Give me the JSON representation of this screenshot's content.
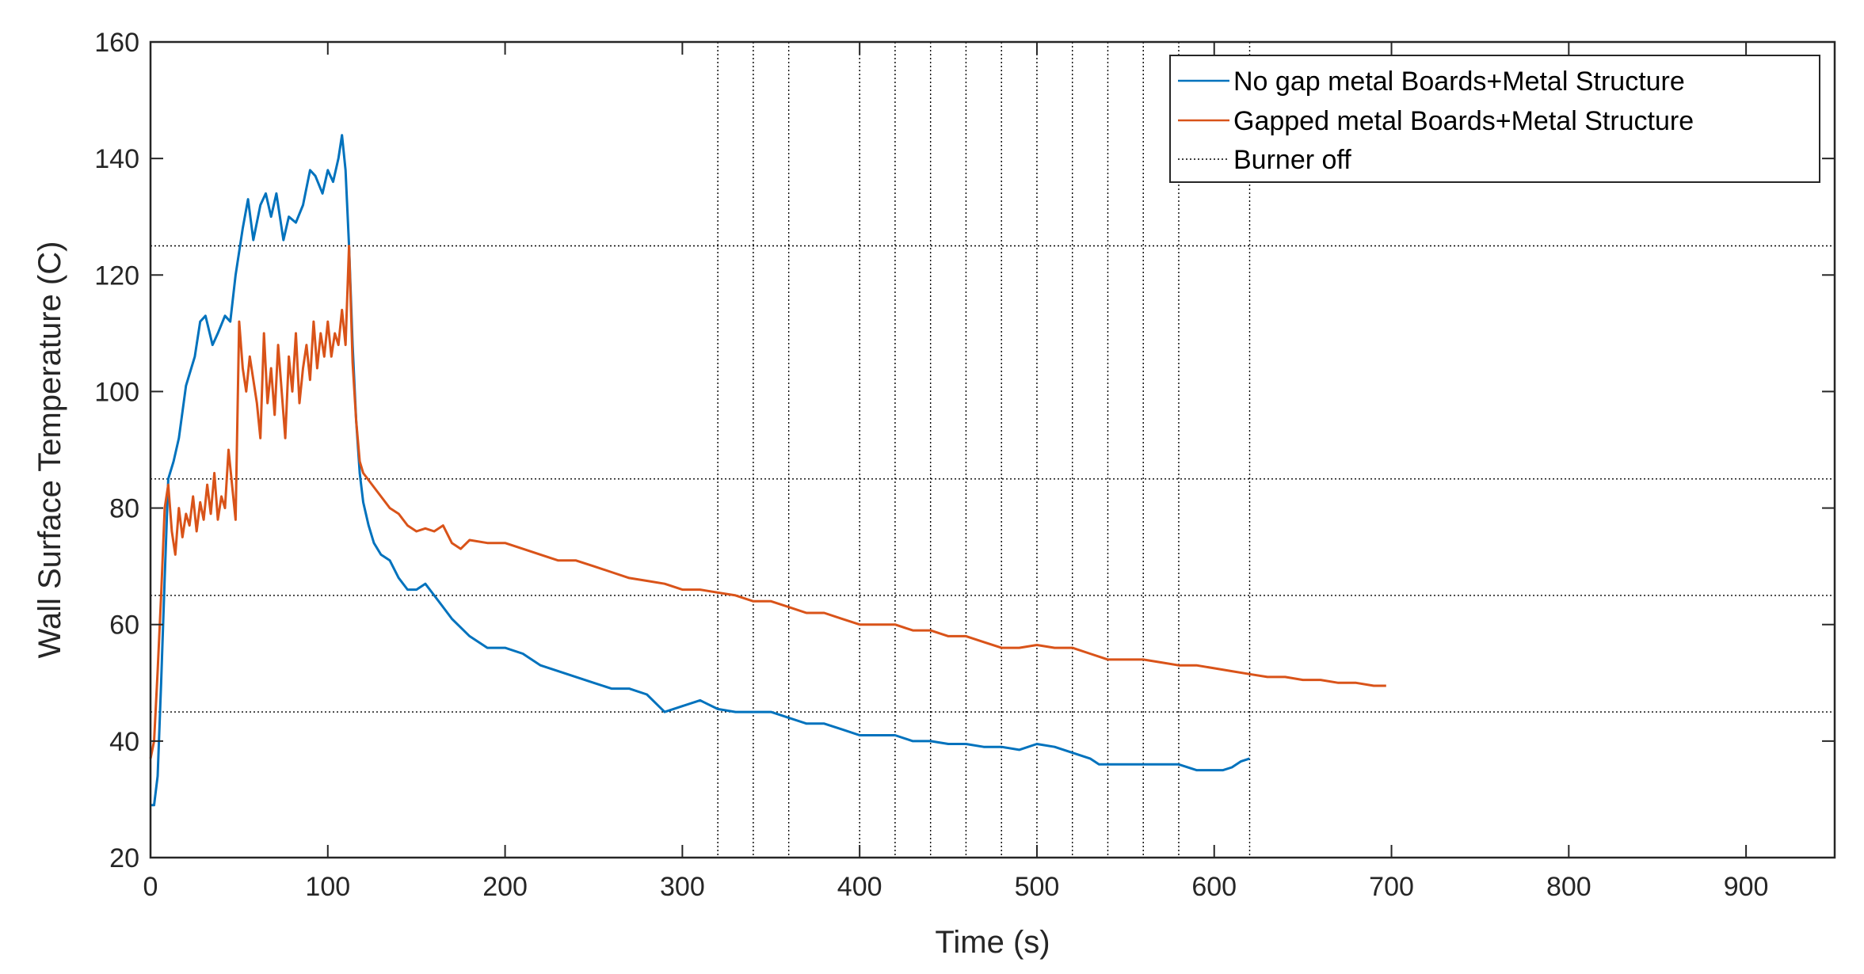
{
  "chart_data": {
    "type": "line",
    "xlabel": "Time (s)",
    "ylabel": "Wall Surface Temperature (C)",
    "xlim": [
      0,
      950
    ],
    "ylim": [
      20,
      160
    ],
    "xticks": [
      0,
      100,
      200,
      300,
      400,
      500,
      600,
      700,
      800,
      900
    ],
    "yticks": [
      20,
      40,
      60,
      80,
      100,
      120,
      140,
      160
    ],
    "grid": false,
    "legend_position": "top-right",
    "series": [
      {
        "name": "No gap metal Boards+Metal Structure",
        "color": "#0072BD",
        "style": "solid",
        "x": [
          0,
          2,
          4,
          6,
          8,
          10,
          13,
          16,
          20,
          25,
          28,
          31,
          35,
          38,
          42,
          45,
          48,
          52,
          55,
          58,
          62,
          65,
          68,
          71,
          75,
          78,
          82,
          86,
          90,
          93,
          97,
          100,
          103,
          106,
          108,
          110,
          112,
          114,
          116,
          118,
          120,
          123,
          126,
          130,
          135,
          140,
          145,
          150,
          155,
          160,
          165,
          170,
          180,
          190,
          200,
          210,
          220,
          230,
          240,
          250,
          260,
          270,
          280,
          290,
          300,
          310,
          320,
          330,
          340,
          350,
          360,
          370,
          380,
          390,
          400,
          410,
          420,
          430,
          440,
          450,
          460,
          470,
          480,
          490,
          500,
          510,
          520,
          530,
          535,
          540,
          550,
          560,
          570,
          580,
          590,
          600,
          605,
          610,
          615,
          620
        ],
        "y": [
          29,
          29,
          34,
          50,
          68,
          85,
          88,
          92,
          101,
          106,
          112,
          113,
          108,
          110,
          113,
          112,
          120,
          128,
          133,
          126,
          132,
          134,
          130,
          134,
          126,
          130,
          129,
          132,
          138,
          137,
          134,
          138,
          136,
          140,
          144,
          138,
          125,
          108,
          95,
          86,
          81,
          77,
          74,
          72,
          71,
          68,
          66,
          66,
          67,
          65,
          63,
          61,
          58,
          56,
          56,
          55,
          53,
          52,
          51,
          50,
          49,
          49,
          48,
          45,
          46,
          47,
          45.5,
          45,
          45,
          45,
          44,
          43,
          43,
          42,
          41,
          41,
          41,
          40,
          40,
          39.5,
          39.5,
          39,
          39,
          38.5,
          39.5,
          39,
          38,
          37,
          36,
          36,
          36,
          36,
          36,
          36,
          35,
          35,
          35,
          35.5,
          36.5,
          37
        ]
      },
      {
        "name": "Gapped metal Boards+Metal Structure",
        "color": "#D95319",
        "style": "solid",
        "x": [
          0,
          2,
          4,
          6,
          8,
          10,
          12,
          14,
          16,
          18,
          20,
          22,
          24,
          26,
          28,
          30,
          32,
          34,
          36,
          38,
          40,
          42,
          44,
          46,
          48,
          50,
          52,
          54,
          56,
          58,
          60,
          62,
          64,
          66,
          68,
          70,
          72,
          74,
          76,
          78,
          80,
          82,
          84,
          86,
          88,
          90,
          92,
          94,
          96,
          98,
          100,
          102,
          104,
          106,
          108,
          110,
          112,
          114,
          116,
          118,
          120,
          125,
          130,
          135,
          140,
          145,
          150,
          155,
          160,
          165,
          170,
          175,
          180,
          190,
          200,
          210,
          220,
          230,
          240,
          250,
          260,
          270,
          280,
          290,
          300,
          310,
          320,
          330,
          340,
          350,
          360,
          370,
          380,
          390,
          400,
          410,
          420,
          430,
          440,
          450,
          460,
          470,
          480,
          490,
          500,
          510,
          520,
          530,
          540,
          550,
          560,
          570,
          580,
          590,
          600,
          610,
          620,
          630,
          640,
          650,
          660,
          670,
          680,
          690,
          697
        ],
        "y": [
          37,
          40,
          52,
          65,
          80,
          84,
          76,
          72,
          80,
          75,
          79,
          77,
          82,
          76,
          81,
          78,
          84,
          79,
          86,
          78,
          82,
          80,
          90,
          84,
          78,
          112,
          104,
          100,
          106,
          102,
          98,
          92,
          110,
          98,
          104,
          96,
          108,
          100,
          92,
          106,
          100,
          110,
          98,
          104,
          108,
          102,
          112,
          104,
          110,
          106,
          112,
          106,
          110,
          108,
          114,
          108,
          125,
          105,
          95,
          88,
          86,
          84,
          82,
          80,
          79,
          77,
          76,
          76.5,
          76,
          77,
          74,
          73,
          74.5,
          74,
          74,
          73,
          72,
          71,
          71,
          70,
          69,
          68,
          67.5,
          67,
          66,
          66,
          65.5,
          65,
          64,
          64,
          63,
          62,
          62,
          61,
          60,
          60,
          60,
          59,
          59,
          58,
          58,
          57,
          56,
          56,
          56.5,
          56,
          56,
          55,
          54,
          54,
          54,
          53.5,
          53,
          53,
          52.5,
          52,
          51.5,
          51,
          51,
          50.5,
          50.5,
          50,
          50,
          49.5,
          49.5
        ]
      },
      {
        "name": "Burner off",
        "color": "#000000",
        "style": "dotted",
        "vlines": [
          320,
          340,
          360,
          400,
          420,
          440,
          460,
          480,
          500,
          520,
          540,
          560,
          580,
          620
        ],
        "hlines": [
          45,
          65,
          85,
          125
        ]
      }
    ]
  }
}
